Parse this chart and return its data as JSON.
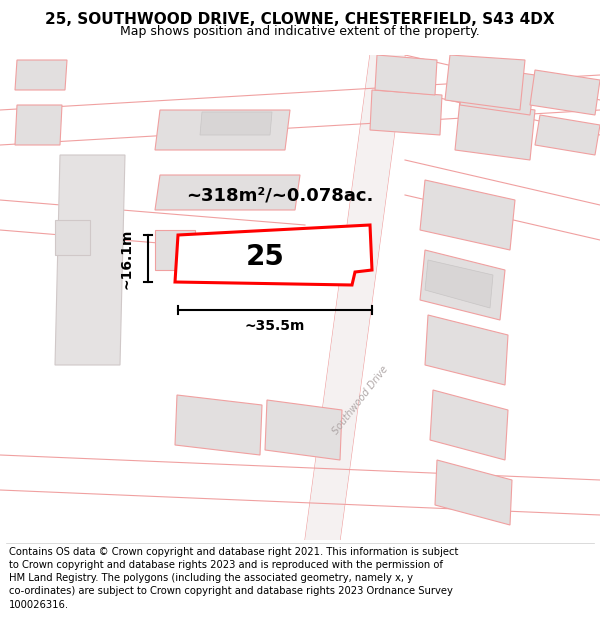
{
  "title": "25, SOUTHWOOD DRIVE, CLOWNE, CHESTERFIELD, S43 4DX",
  "subtitle": "Map shows position and indicative extent of the property.",
  "footer": "Contains OS data © Crown copyright and database right 2021. This information is subject to Crown copyright and database rights 2023 and is reproduced with the permission of HM Land Registry. The polygons (including the associated geometry, namely x, y co-ordinates) are subject to Crown copyright and database rights 2023 Ordnance Survey 100026316.",
  "area_label": "~318m²/~0.078ac.",
  "width_label": "~35.5m",
  "height_label": "~16.1m",
  "number_label": "25",
  "bg_color": "#ffffff",
  "map_bg": "#f7f4f4",
  "highlight_color": "#ff0000",
  "building_fill": "#e2dfdf",
  "road_color": "#f7f4f4",
  "line_color": "#f0a0a0",
  "title_fontsize": 11,
  "subtitle_fontsize": 9,
  "footer_fontsize": 7.2,
  "road_label": "Southwood Drive"
}
